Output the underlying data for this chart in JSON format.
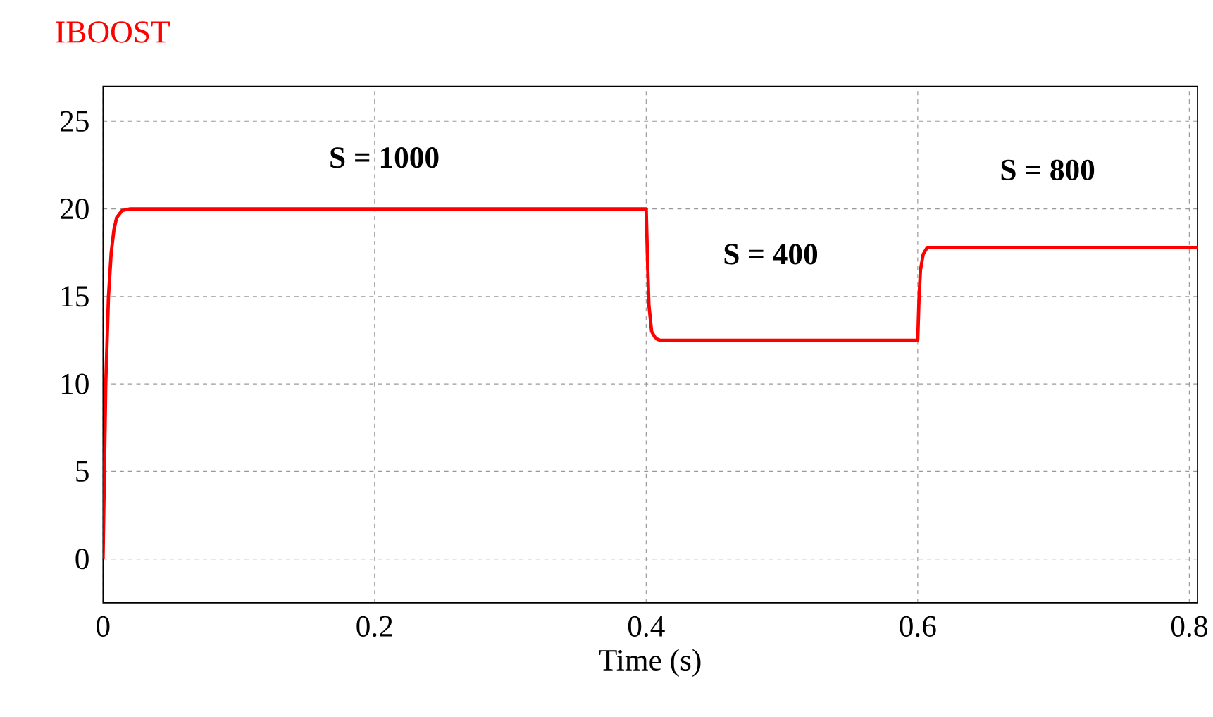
{
  "chart_data": {
    "type": "line",
    "title": "IBOOST",
    "xlabel": "Time (s)",
    "xlim": [
      0,
      0.806
    ],
    "ylim": [
      -2.5,
      27
    ],
    "xticks": [
      0,
      0.2,
      0.4,
      0.6,
      0.8
    ],
    "yticks": [
      0,
      5,
      10,
      15,
      20,
      25
    ],
    "grid": true,
    "marker": "none",
    "line_style": "solid",
    "series": [
      {
        "color": "#ff0000",
        "x": [
          0,
          0.002,
          0.004,
          0.006,
          0.008,
          0.01,
          0.014,
          0.02,
          0.4,
          0.401,
          0.402,
          0.404,
          0.407,
          0.41,
          0.6,
          0.601,
          0.602,
          0.604,
          0.607,
          0.61,
          0.806
        ],
        "values": [
          0,
          10,
          15,
          17.5,
          18.8,
          19.5,
          19.9,
          20,
          20,
          17,
          14.5,
          13,
          12.6,
          12.5,
          12.5,
          15,
          16.5,
          17.4,
          17.8,
          17.8,
          17.8
        ]
      }
    ],
    "annotations": [
      "**S = 1000**",
      "**S = 400**",
      "**S = 800**"
    ]
  }
}
